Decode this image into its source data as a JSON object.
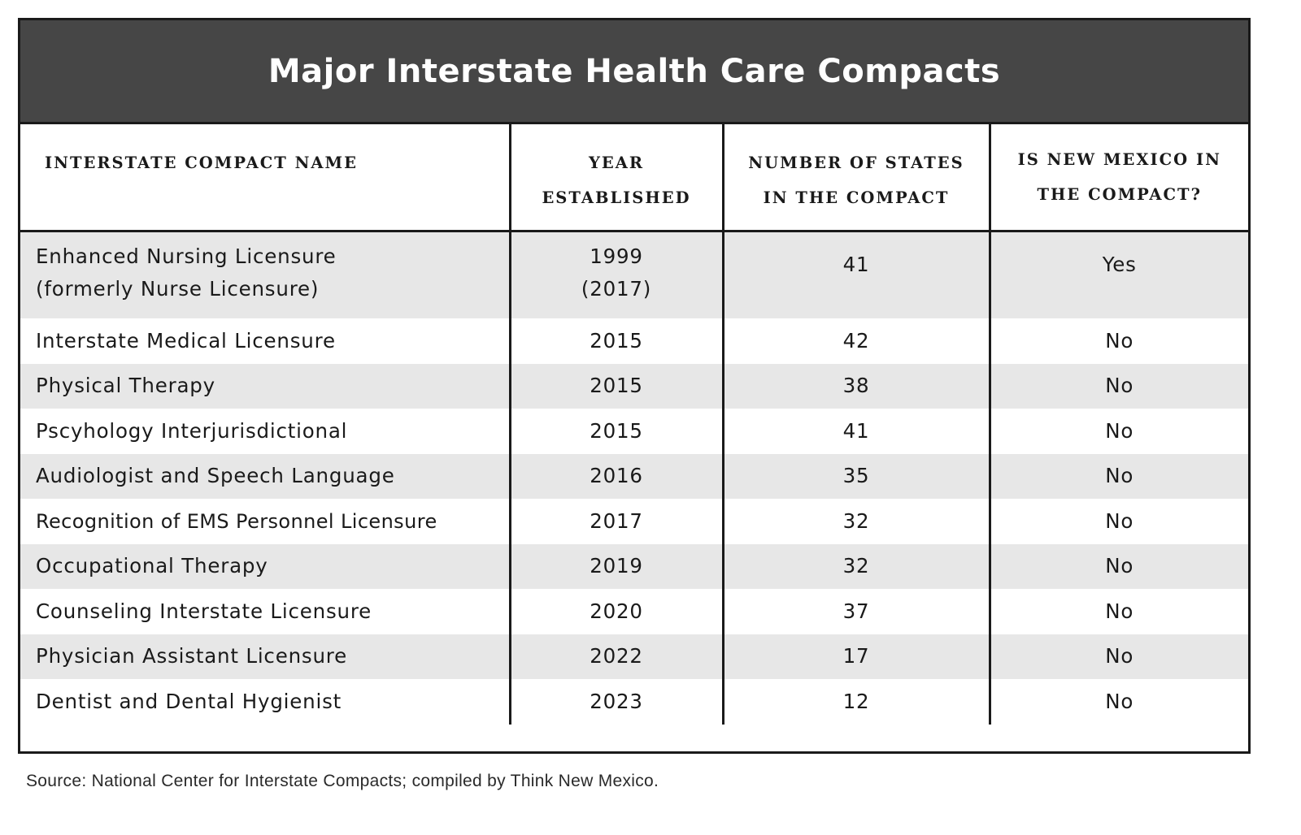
{
  "title": "Major Interstate Health Care Compacts",
  "columns": [
    "Interstate Compact Name",
    "Year Established",
    "Number of States in the Compact",
    "Is New Mexico in the Compact?"
  ],
  "rows": [
    {
      "name": "Enhanced Nursing Licensure",
      "name_note": "(formerly Nurse Licensure)",
      "year": "1999",
      "year_note": "(2017)",
      "states": "41",
      "nm": "Yes"
    },
    {
      "name": "Interstate Medical Licensure",
      "year": "2015",
      "states": "42",
      "nm": "No"
    },
    {
      "name": "Physical Therapy",
      "year": "2015",
      "states": "38",
      "nm": "No"
    },
    {
      "name": "Pscyhology Interjurisdictional",
      "year": "2015",
      "states": "41",
      "nm": "No"
    },
    {
      "name": "Audiologist and Speech Language",
      "year": "2016",
      "states": "35",
      "nm": "No"
    },
    {
      "name": "Recognition of EMS Personnel Licensure",
      "year": "2017",
      "states": "32",
      "nm": "No"
    },
    {
      "name": "Occupational Therapy",
      "year": "2019",
      "states": "32",
      "nm": "No"
    },
    {
      "name": "Counseling Interstate Licensure",
      "year": "2020",
      "states": "37",
      "nm": "No"
    },
    {
      "name": "Physician Assistant Licensure",
      "year": "2022",
      "states": "17",
      "nm": "No"
    },
    {
      "name": "Dentist and Dental Hygienist",
      "year": "2023",
      "states": "12",
      "nm": "No"
    }
  ],
  "source": "Source: National Center for Interstate Compacts; compiled by Think New Mexico."
}
